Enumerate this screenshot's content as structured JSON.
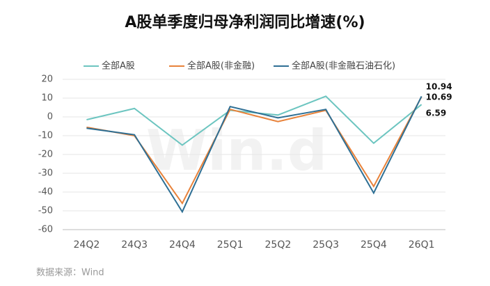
{
  "chart_data": {
    "type": "line",
    "title": "A股单季度归母净利润同比增速(%)",
    "categories": [
      "24Q2",
      "24Q3",
      "24Q4",
      "25Q1",
      "25Q2",
      "25Q3",
      "25Q4",
      "26Q1"
    ],
    "series": [
      {
        "name": "全部A股",
        "color": "#6cc5c0",
        "values": [
          -1.5,
          4.5,
          -15,
          3.5,
          1,
          11,
          -14,
          6.59
        ]
      },
      {
        "name": "全部A股(非金融)",
        "color": "#e8823a",
        "values": [
          -5.5,
          -10,
          -46,
          4,
          -2.5,
          3.5,
          -37,
          10.69
        ]
      },
      {
        "name": "全部A股(非金融石油石化)",
        "color": "#2e6f94",
        "values": [
          -6,
          -9.5,
          -50.5,
          5.5,
          -0.5,
          4,
          -40.5,
          10.94
        ]
      }
    ],
    "ylim": [
      -60,
      20
    ],
    "yticks": [
      -60,
      -50,
      -40,
      -30,
      -20,
      -10,
      0,
      10,
      20
    ],
    "grid": true,
    "legend": "top",
    "source": "数据来源：Wind",
    "watermark": "Win.d"
  }
}
